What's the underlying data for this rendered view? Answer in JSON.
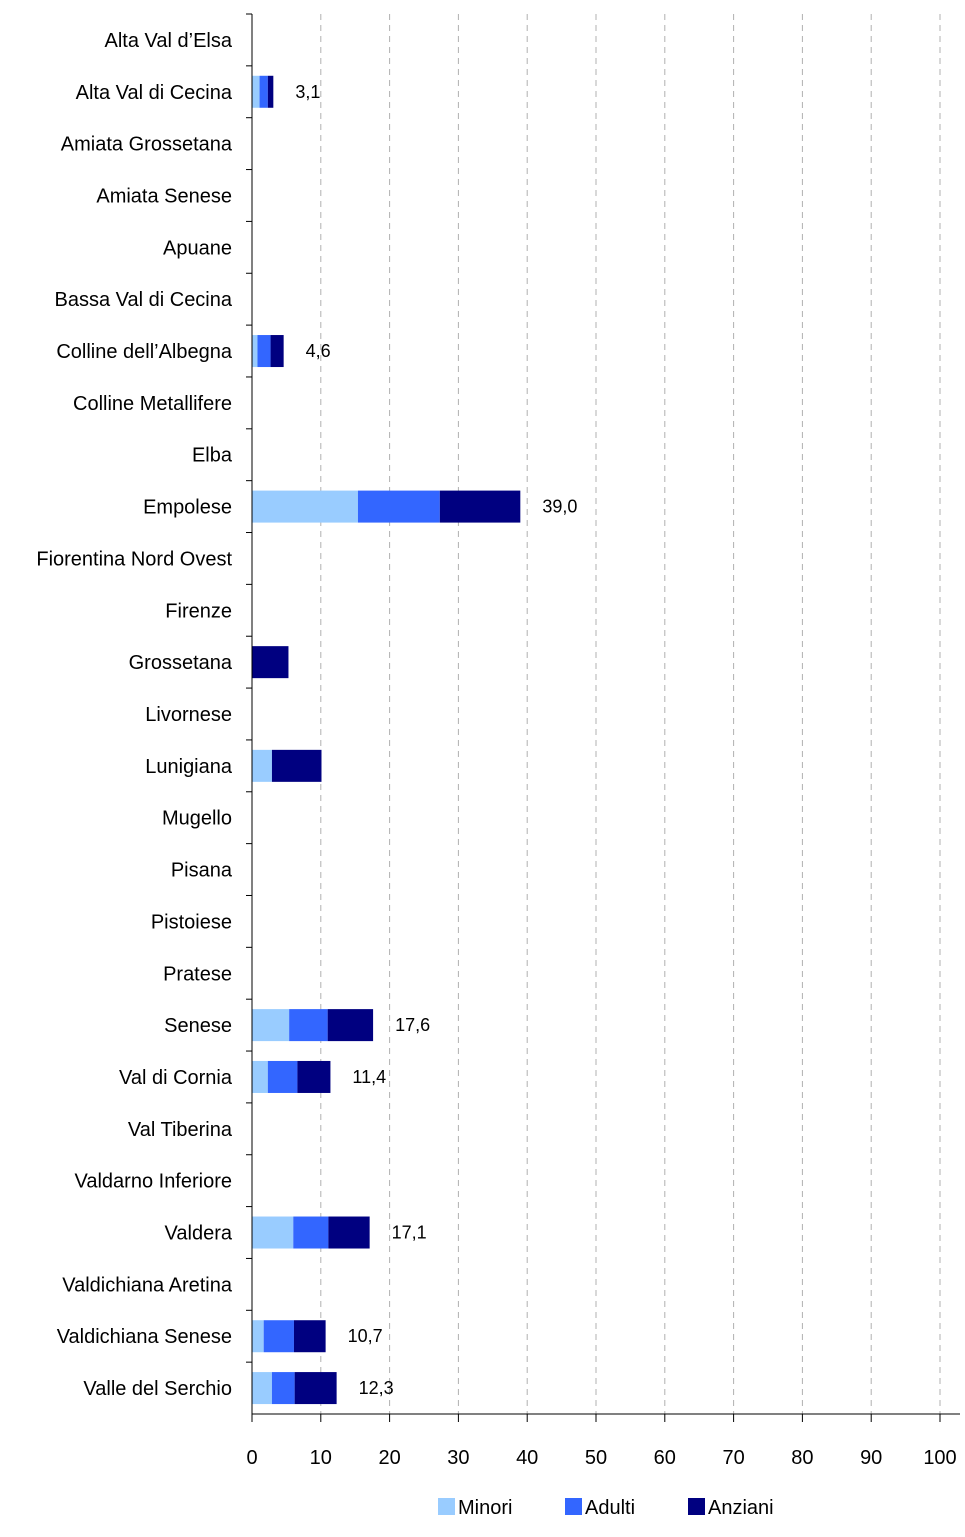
{
  "chart_data": {
    "type": "bar",
    "orientation": "horizontal",
    "stacked": true,
    "categories": [
      "Alta Val d’Elsa",
      "Alta Val di Cecina",
      "Amiata Grossetana",
      "Amiata Senese",
      "Apuane",
      "Bassa Val di Cecina",
      "Colline dell’Albegna",
      "Colline Metallifere",
      "Elba",
      "Empolese",
      "Fiorentina Nord Ovest",
      "Firenze",
      "Grossetana",
      "Livornese",
      "Lunigiana",
      "Mugello",
      "Pisana",
      "Pistoiese",
      "Pratese",
      "Senese",
      "Val di Cornia",
      "Val Tiberina",
      "Valdarno Inferiore",
      "Valdera",
      "Valdichiana Aretina",
      "Valdichiana Senese",
      "Valle del Serchio"
    ],
    "series": [
      {
        "name": "Minori",
        "color": "#99ccff",
        "values": [
          0,
          1.1,
          0,
          0,
          0,
          0,
          0.8,
          0,
          0,
          15.4,
          0,
          0,
          0,
          0,
          2.9,
          0,
          0,
          0,
          0,
          5.4,
          2.3,
          0,
          0,
          6.0,
          0,
          1.7,
          2.9
        ]
      },
      {
        "name": "Adulti",
        "color": "#3366ff",
        "values": [
          0,
          1.2,
          0,
          0,
          0,
          0,
          1.9,
          0,
          0,
          11.9,
          0,
          0,
          0,
          0,
          0,
          0,
          0,
          0,
          0,
          5.6,
          4.3,
          0,
          0,
          5.1,
          0,
          4.4,
          3.3
        ]
      },
      {
        "name": "Anziani",
        "color": "#000080",
        "values": [
          0,
          0.8,
          0,
          0,
          0,
          0,
          1.9,
          0,
          0,
          11.7,
          0,
          0,
          5.3,
          0,
          7.2,
          0,
          0,
          0,
          0,
          6.6,
          4.8,
          0,
          0,
          6.0,
          0,
          4.6,
          6.1
        ]
      }
    ],
    "totals": [
      "",
      "3,1",
      "",
      "",
      "",
      "",
      "4,6",
      "",
      "",
      "39,0",
      "",
      "",
      "",
      "",
      "",
      "",
      "",
      "",
      "",
      "17,6",
      "11,4",
      "",
      "",
      "17,1",
      "",
      "10,7",
      "12,3"
    ],
    "xlim": [
      0,
      100
    ],
    "x_ticks": [
      "0",
      "10",
      "20",
      "30",
      "40",
      "50",
      "60",
      "70",
      "80",
      "90",
      "100"
    ],
    "grid": "vertical-dashed",
    "legend": "bottom"
  }
}
